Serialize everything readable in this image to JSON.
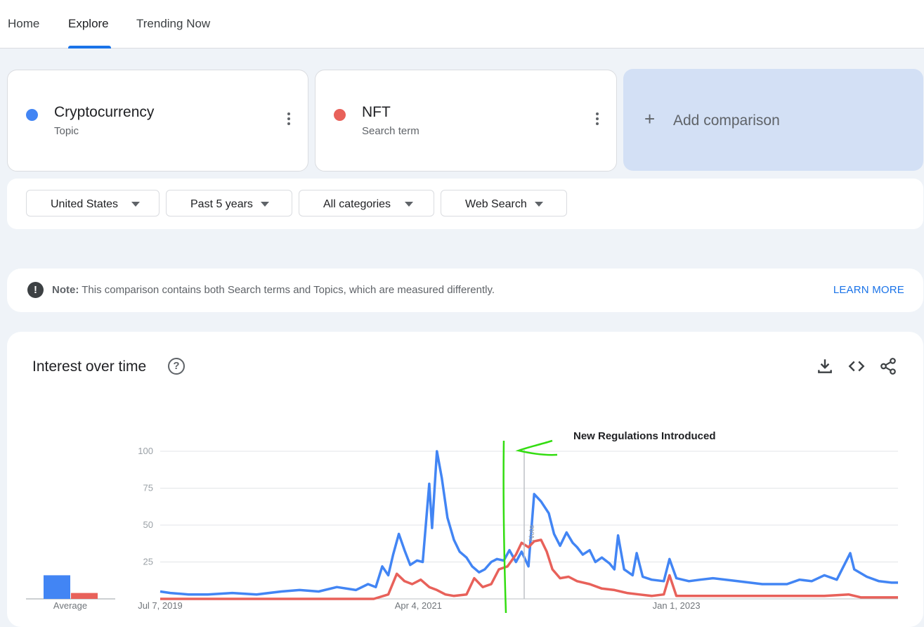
{
  "nav": {
    "tabs": [
      {
        "label": "Home"
      },
      {
        "label": "Explore"
      },
      {
        "label": "Trending Now"
      }
    ],
    "active_tab": "Explore"
  },
  "terms": [
    {
      "name": "Cryptocurrency",
      "type": "Topic",
      "color": "#4285f4"
    },
    {
      "name": "NFT",
      "type": "Search term",
      "color": "#e8615a"
    }
  ],
  "add_comparison": {
    "label": "Add comparison"
  },
  "filters": [
    {
      "label": "United States"
    },
    {
      "label": "Past 5 years"
    },
    {
      "label": "All categories"
    },
    {
      "label": "Web Search"
    }
  ],
  "note": {
    "prefix": "Note:",
    "text": "This comparison contains both Search terms and Topics, which are measured differently.",
    "link": "LEARN MORE"
  },
  "chart": {
    "title": "Interest over time",
    "average_label": "Average",
    "marker_label": "Note",
    "annotation": "New Regulations Introduced"
  },
  "chart_data": {
    "type": "line",
    "x_range": [
      "2019-07-07",
      "2024-07-01"
    ],
    "ylim": [
      0,
      100
    ],
    "yticks": [
      100,
      75,
      50,
      25
    ],
    "xtick_labels": [
      "Jul 7, 2019",
      "Apr 4, 2021",
      "Jan 1, 2023"
    ],
    "grid": true,
    "annotation": {
      "text": "New Regulations Introduced",
      "date": "2021-10-17"
    },
    "averages": [
      {
        "series": "Cryptocurrency",
        "value": 16
      },
      {
        "series": "NFT",
        "value": 4
      }
    ],
    "series": [
      {
        "name": "Cryptocurrency",
        "color": "#4285f4",
        "points": [
          [
            "2019-07-07",
            5
          ],
          [
            "2019-08-01",
            4
          ],
          [
            "2019-09-15",
            3
          ],
          [
            "2019-11-01",
            3
          ],
          [
            "2020-01-01",
            4
          ],
          [
            "2020-03-01",
            3
          ],
          [
            "2020-05-01",
            5
          ],
          [
            "2020-06-15",
            6
          ],
          [
            "2020-08-01",
            5
          ],
          [
            "2020-09-15",
            8
          ],
          [
            "2020-11-01",
            6
          ],
          [
            "2020-12-01",
            10
          ],
          [
            "2020-12-20",
            8
          ],
          [
            "2021-01-05",
            22
          ],
          [
            "2021-01-20",
            16
          ],
          [
            "2021-02-01",
            30
          ],
          [
            "2021-02-15",
            44
          ],
          [
            "2021-03-01",
            33
          ],
          [
            "2021-03-15",
            23
          ],
          [
            "2021-04-01",
            26
          ],
          [
            "2021-04-15",
            25
          ],
          [
            "2021-05-01",
            78
          ],
          [
            "2021-05-08",
            48
          ],
          [
            "2021-05-20",
            100
          ],
          [
            "2021-06-01",
            82
          ],
          [
            "2021-06-15",
            55
          ],
          [
            "2021-07-01",
            40
          ],
          [
            "2021-07-15",
            32
          ],
          [
            "2021-08-01",
            28
          ],
          [
            "2021-08-15",
            22
          ],
          [
            "2021-09-01",
            18
          ],
          [
            "2021-09-15",
            20
          ],
          [
            "2021-10-01",
            25
          ],
          [
            "2021-10-15",
            27
          ],
          [
            "2021-11-01",
            26
          ],
          [
            "2021-11-15",
            33
          ],
          [
            "2021-12-01",
            25
          ],
          [
            "2021-12-15",
            32
          ],
          [
            "2022-01-01",
            22
          ],
          [
            "2022-01-15",
            71
          ],
          [
            "2022-02-01",
            66
          ],
          [
            "2022-02-20",
            58
          ],
          [
            "2022-03-05",
            44
          ],
          [
            "2022-03-20",
            36
          ],
          [
            "2022-04-05",
            45
          ],
          [
            "2022-04-20",
            38
          ],
          [
            "2022-05-01",
            35
          ],
          [
            "2022-05-15",
            30
          ],
          [
            "2022-06-01",
            33
          ],
          [
            "2022-06-15",
            25
          ],
          [
            "2022-07-01",
            28
          ],
          [
            "2022-07-20",
            24
          ],
          [
            "2022-08-01",
            20
          ],
          [
            "2022-08-10",
            43
          ],
          [
            "2022-08-25",
            20
          ],
          [
            "2022-09-15",
            16
          ],
          [
            "2022-09-25",
            31
          ],
          [
            "2022-10-10",
            15
          ],
          [
            "2022-11-01",
            13
          ],
          [
            "2022-12-01",
            12
          ],
          [
            "2022-12-15",
            27
          ],
          [
            "2023-01-01",
            14
          ],
          [
            "2023-02-01",
            12
          ],
          [
            "2023-03-01",
            13
          ],
          [
            "2023-04-01",
            14
          ],
          [
            "2023-06-01",
            12
          ],
          [
            "2023-08-01",
            10
          ],
          [
            "2023-10-01",
            10
          ],
          [
            "2023-11-01",
            13
          ],
          [
            "2023-12-01",
            12
          ],
          [
            "2024-01-01",
            16
          ],
          [
            "2024-02-01",
            13
          ],
          [
            "2024-03-05",
            31
          ],
          [
            "2024-03-15",
            20
          ],
          [
            "2024-04-15",
            15
          ],
          [
            "2024-05-15",
            12
          ],
          [
            "2024-06-15",
            11
          ],
          [
            "2024-07-01",
            11
          ]
        ]
      },
      {
        "name": "NFT",
        "color": "#e8615a",
        "points": [
          [
            "2019-07-07",
            0
          ],
          [
            "2020-12-15",
            0
          ],
          [
            "2021-01-20",
            3
          ],
          [
            "2021-02-10",
            17
          ],
          [
            "2021-03-01",
            12
          ],
          [
            "2021-03-20",
            10
          ],
          [
            "2021-04-10",
            13
          ],
          [
            "2021-05-01",
            8
          ],
          [
            "2021-05-20",
            6
          ],
          [
            "2021-06-10",
            3
          ],
          [
            "2021-07-01",
            2
          ],
          [
            "2021-08-01",
            3
          ],
          [
            "2021-08-20",
            14
          ],
          [
            "2021-09-10",
            8
          ],
          [
            "2021-10-01",
            10
          ],
          [
            "2021-10-20",
            20
          ],
          [
            "2021-11-10",
            22
          ],
          [
            "2021-12-01",
            30
          ],
          [
            "2021-12-15",
            38
          ],
          [
            "2022-01-01",
            35
          ],
          [
            "2022-01-15",
            39
          ],
          [
            "2022-02-01",
            40
          ],
          [
            "2022-02-15",
            32
          ],
          [
            "2022-03-01",
            20
          ],
          [
            "2022-03-20",
            14
          ],
          [
            "2022-04-10",
            15
          ],
          [
            "2022-05-01",
            12
          ],
          [
            "2022-06-01",
            10
          ],
          [
            "2022-07-01",
            7
          ],
          [
            "2022-08-01",
            6
          ],
          [
            "2022-09-01",
            4
          ],
          [
            "2022-10-01",
            3
          ],
          [
            "2022-11-01",
            2
          ],
          [
            "2022-12-01",
            3
          ],
          [
            "2022-12-15",
            16
          ],
          [
            "2023-01-01",
            2
          ],
          [
            "2023-06-01",
            2
          ],
          [
            "2024-01-01",
            2
          ],
          [
            "2024-03-01",
            3
          ],
          [
            "2024-04-01",
            1
          ],
          [
            "2024-07-01",
            1
          ]
        ]
      }
    ]
  }
}
